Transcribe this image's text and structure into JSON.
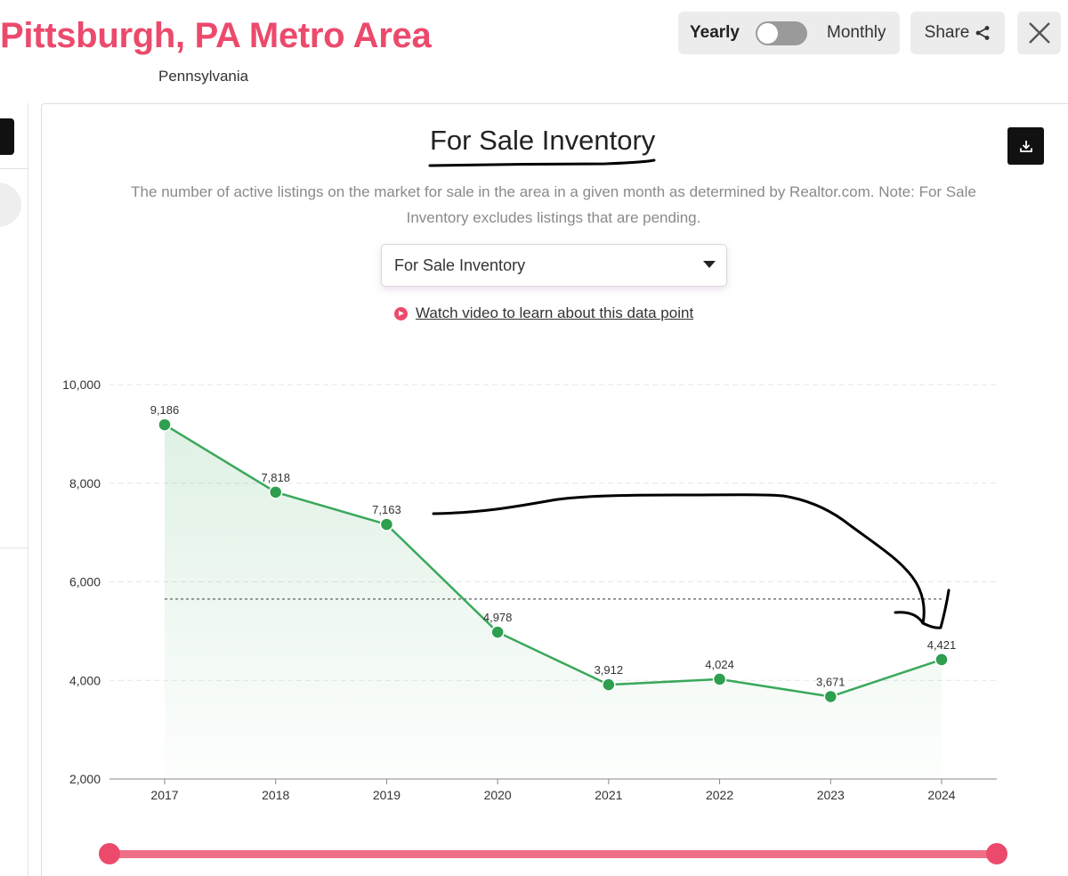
{
  "header": {
    "title": "Pittsburgh, PA Metro Area",
    "subtitle": "Pennsylvania",
    "toggle_left": "Yearly",
    "toggle_right": "Monthly",
    "share_label": "Share"
  },
  "panel": {
    "description": "The number of active listings on the market for sale in the area in a given month as determined by Realtor.com. Note: For Sale Inventory excludes listings that are pending.",
    "select_value": "For Sale Inventory",
    "video_link": "Watch video to learn about this data point"
  },
  "colors": {
    "brand": "#ec4a6c",
    "line": "#3aa85a",
    "point": "#2e9e4f"
  },
  "chart_data": {
    "type": "line",
    "title": "For Sale Inventory",
    "xlabel": "",
    "ylabel": "",
    "x": [
      "2017",
      "2018",
      "2019",
      "2020",
      "2021",
      "2022",
      "2023",
      "2024"
    ],
    "series": [
      {
        "name": "For Sale Inventory",
        "values": [
          9186,
          7818,
          7163,
          4978,
          3912,
          4024,
          3671,
          4421
        ]
      }
    ],
    "data_labels": [
      "9,186",
      "7,818",
      "7,163",
      "4,978",
      "3,912",
      "4,024",
      "3,671",
      "4,421"
    ],
    "yticks": [
      2000,
      4000,
      6000,
      8000,
      10000
    ],
    "ytick_labels": [
      "2,000",
      "4,000",
      "6,000",
      "8,000",
      "10,000"
    ],
    "ylim": [
      2000,
      10000
    ],
    "average_line": 5650,
    "grid": true
  }
}
